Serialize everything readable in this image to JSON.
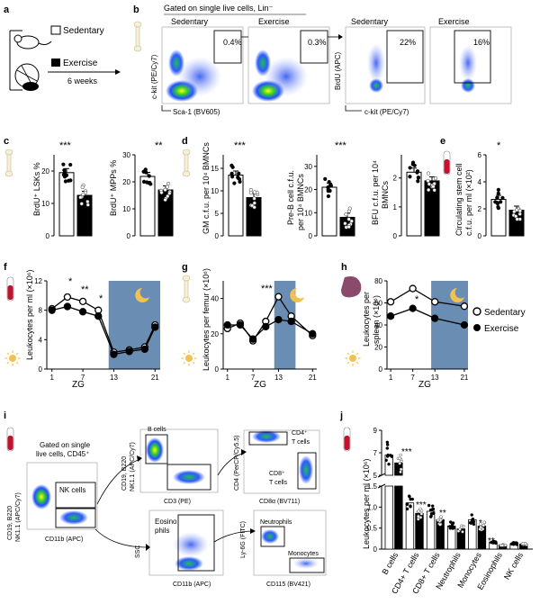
{
  "panels": {
    "a": "a",
    "b": "b",
    "c": "c",
    "d": "d",
    "e": "e",
    "f": "f",
    "g": "g",
    "h": "h",
    "i": "i",
    "j": "j"
  },
  "panel_a": {
    "sedentary": "Sedentary",
    "exercise": "Exercise",
    "duration": "6 weeks"
  },
  "panel_b": {
    "header": "Gated on single live cells, Lin⁻",
    "col1": "Sedentary",
    "col2": "Exercise",
    "col3": "Sedentary",
    "col4": "Exercise",
    "pct1": "0.4%",
    "pct2": "0.3%",
    "pct3": "22%",
    "pct4": "16%",
    "y1": "c-kit (PE/Cy7)",
    "x1": "Sca-1 (BV605)",
    "y2": "BrdU (APC)",
    "x2": "c-kit (PE/Cy7)"
  },
  "stars": {
    "c1": "***",
    "c2": "**",
    "d1": "***",
    "d2": "***",
    "e": "*",
    "f1": "*",
    "f2": "**",
    "f3": "*",
    "g": "***",
    "h": "*",
    "j1": "***",
    "j2": "***",
    "j3": "**",
    "j4": "*",
    "j5": "**"
  },
  "axes": {
    "c1": "BrdU⁺ LSKs %",
    "c2": "BrdU⁺ MPPs %",
    "d1": "GM c.f.u. per 10⁴ BMNCs",
    "d2a": "Pre-B cell c.f.u.",
    "d2b": "per 10⁴ BMNCs",
    "d3a": "BFU c.f.u. per 10⁴",
    "d3b": "BMNCs",
    "ea": "Circulating stem cell",
    "eb": "c.f.u. per ml (×10²)",
    "f": "Leukocytes per ml (×10⁶)",
    "g": "Leukocytes per femur (×10⁶)",
    "ha": "Leukocytes per",
    "hb": "spleen (×10⁶)",
    "j": "Leukocytes per ml (×10⁶)",
    "zg": "ZG"
  },
  "ticks": {
    "c1": [
      "0",
      "10",
      "20"
    ],
    "c2": [
      "0",
      "10",
      "20",
      "30"
    ],
    "d1": [
      "0",
      "5",
      "10",
      "15"
    ],
    "d2": [
      "0",
      "10",
      "20",
      "30"
    ],
    "d3": [
      "0",
      "1",
      "2"
    ],
    "e": [
      "0",
      "2",
      "4",
      "6"
    ],
    "f": [
      "0",
      "4",
      "8",
      "12"
    ],
    "g": [
      "0",
      "20",
      "40"
    ],
    "h": [
      "0",
      "20",
      "40",
      "60",
      "80"
    ],
    "zg": [
      "1",
      "7",
      "13",
      "21"
    ],
    "j_low": [
      "0",
      "0.5",
      "1.0",
      "1.5"
    ],
    "j_high": [
      "5",
      "7",
      "9"
    ]
  },
  "legend": {
    "sedentary": "Sedentary",
    "exercise": "Exercise"
  },
  "panel_i": {
    "gate": "Gated on single",
    "gate2": "live cells, CD45⁺",
    "nk": "NK cells",
    "bcells": "B cells",
    "cd4": "CD4⁺",
    "tcells": "T cells",
    "cd8": "CD8⁺",
    "tcells2": "T cells",
    "eos1": "Eosino",
    "eos2": "phils",
    "neut": "Neutrophils",
    "mono": "Monocytes",
    "y_main": "CD19, B220",
    "y_main2": "NK1.1 (APC/Cy7)",
    "x_main": "CD11b (APC)",
    "y_b": "CD19, B220",
    "y_b2": "NK1.1 (APC/Cy7)",
    "x_b": "CD3 (PE)",
    "y_t": "CD4 (PerCP/Cy5.5)",
    "x_t": "CD8α (BV711)",
    "y_e": "SSC",
    "x_e": "CD11b (APC)",
    "y_n": "Ly-6G (FITC)",
    "x_n": "CD115 (BV421)"
  },
  "j_categories": [
    "B cells",
    "CD4⁺ T cells",
    "CD8⁺ T cells",
    "Neutrophils",
    "Monocytes",
    "Eosinophils",
    "NK cells"
  ],
  "colors": {
    "sed": "#ffffff",
    "ex": "#000000",
    "night": "#6a8db3",
    "sun": "#f2c14e",
    "tube": "#c8102e",
    "spleen": "#8b4a6b"
  },
  "chart_data": [
    {
      "type": "bar",
      "panel": "c",
      "title": "",
      "categories": [
        "Sedentary",
        "Exercise"
      ],
      "ylabel": "BrdU+ LSKs %",
      "values": [
        19.5,
        12.5
      ],
      "ylim": [
        0,
        25
      ]
    },
    {
      "type": "bar",
      "panel": "c",
      "title": "",
      "categories": [
        "Sedentary",
        "Exercise"
      ],
      "ylabel": "BrdU+ MPPs %",
      "values": [
        22,
        17
      ],
      "ylim": [
        0,
        30
      ]
    },
    {
      "type": "bar",
      "panel": "d",
      "title": "",
      "categories": [
        "Sedentary",
        "Exercise"
      ],
      "ylabel": "GM c.f.u. per 10^4 BMNCs",
      "values": [
        13.5,
        8.5
      ],
      "ylim": [
        0,
        18
      ]
    },
    {
      "type": "bar",
      "panel": "d",
      "title": "",
      "categories": [
        "Sedentary",
        "Exercise"
      ],
      "ylabel": "Pre-B cell c.f.u. per 10^4 BMNCs",
      "values": [
        21,
        8
      ],
      "ylim": [
        0,
        35
      ]
    },
    {
      "type": "bar",
      "panel": "d",
      "title": "",
      "categories": [
        "Sedentary",
        "Exercise"
      ],
      "ylabel": "BFU c.f.u. per 10^4 BMNCs",
      "values": [
        2.2,
        1.9
      ],
      "ylim": [
        0,
        2.8
      ]
    },
    {
      "type": "bar",
      "panel": "e",
      "title": "",
      "categories": [
        "Sedentary",
        "Exercise"
      ],
      "ylabel": "Circulating stem cell c.f.u. per ml (x10^2)",
      "values": [
        2.7,
        1.9
      ],
      "ylim": [
        0,
        6
      ]
    },
    {
      "type": "line",
      "panel": "f",
      "xlabel": "ZG",
      "ylabel": "Leukocytes per ml (x10^6)",
      "x": [
        1,
        4,
        7,
        10,
        13,
        16,
        19,
        21
      ],
      "ylim": [
        0,
        12
      ],
      "series": [
        {
          "name": "Sedentary",
          "values": [
            8.2,
            9.8,
            9.2,
            8.0,
            2.3,
            2.6,
            3.0,
            6.0
          ]
        },
        {
          "name": "Exercise",
          "values": [
            8.0,
            8.5,
            7.8,
            7.2,
            2.0,
            2.4,
            2.7,
            5.7
          ]
        }
      ]
    },
    {
      "type": "line",
      "panel": "g",
      "xlabel": "ZG",
      "ylabel": "Leukocytes per femur (x10^6)",
      "x": [
        1,
        4,
        7,
        10,
        13,
        16,
        21
      ],
      "ylim": [
        0,
        50
      ],
      "series": [
        {
          "name": "Sedentary",
          "values": [
            23,
            26,
            16,
            27,
            41,
            30,
            19
          ]
        },
        {
          "name": "Exercise",
          "values": [
            25,
            25,
            17,
            24,
            28,
            27,
            20
          ]
        }
      ]
    },
    {
      "type": "line",
      "panel": "h",
      "xlabel": "ZG",
      "ylabel": "Leukocytes per spleen (x10^6)",
      "x": [
        1,
        7,
        13,
        21
      ],
      "ylim": [
        0,
        80
      ],
      "series": [
        {
          "name": "Sedentary",
          "values": [
            61,
            73,
            61,
            57
          ]
        },
        {
          "name": "Exercise",
          "values": [
            48,
            55,
            46,
            40
          ]
        }
      ]
    },
    {
      "type": "bar",
      "panel": "j",
      "ylabel": "Leukocytes per ml (x10^6)",
      "categories": [
        "B cells",
        "CD4+ T cells",
        "CD8+ T cells",
        "Neutrophils",
        "Monocytes",
        "Eosinophils",
        "NK cells"
      ],
      "series": [
        {
          "name": "Sedentary",
          "values": [
            6.8,
            1.1,
            0.9,
            0.55,
            0.7,
            0.17,
            0.13
          ]
        },
        {
          "name": "Exercise",
          "values": [
            6.1,
            0.85,
            0.7,
            0.48,
            0.55,
            0.1,
            0.12
          ]
        }
      ]
    }
  ]
}
